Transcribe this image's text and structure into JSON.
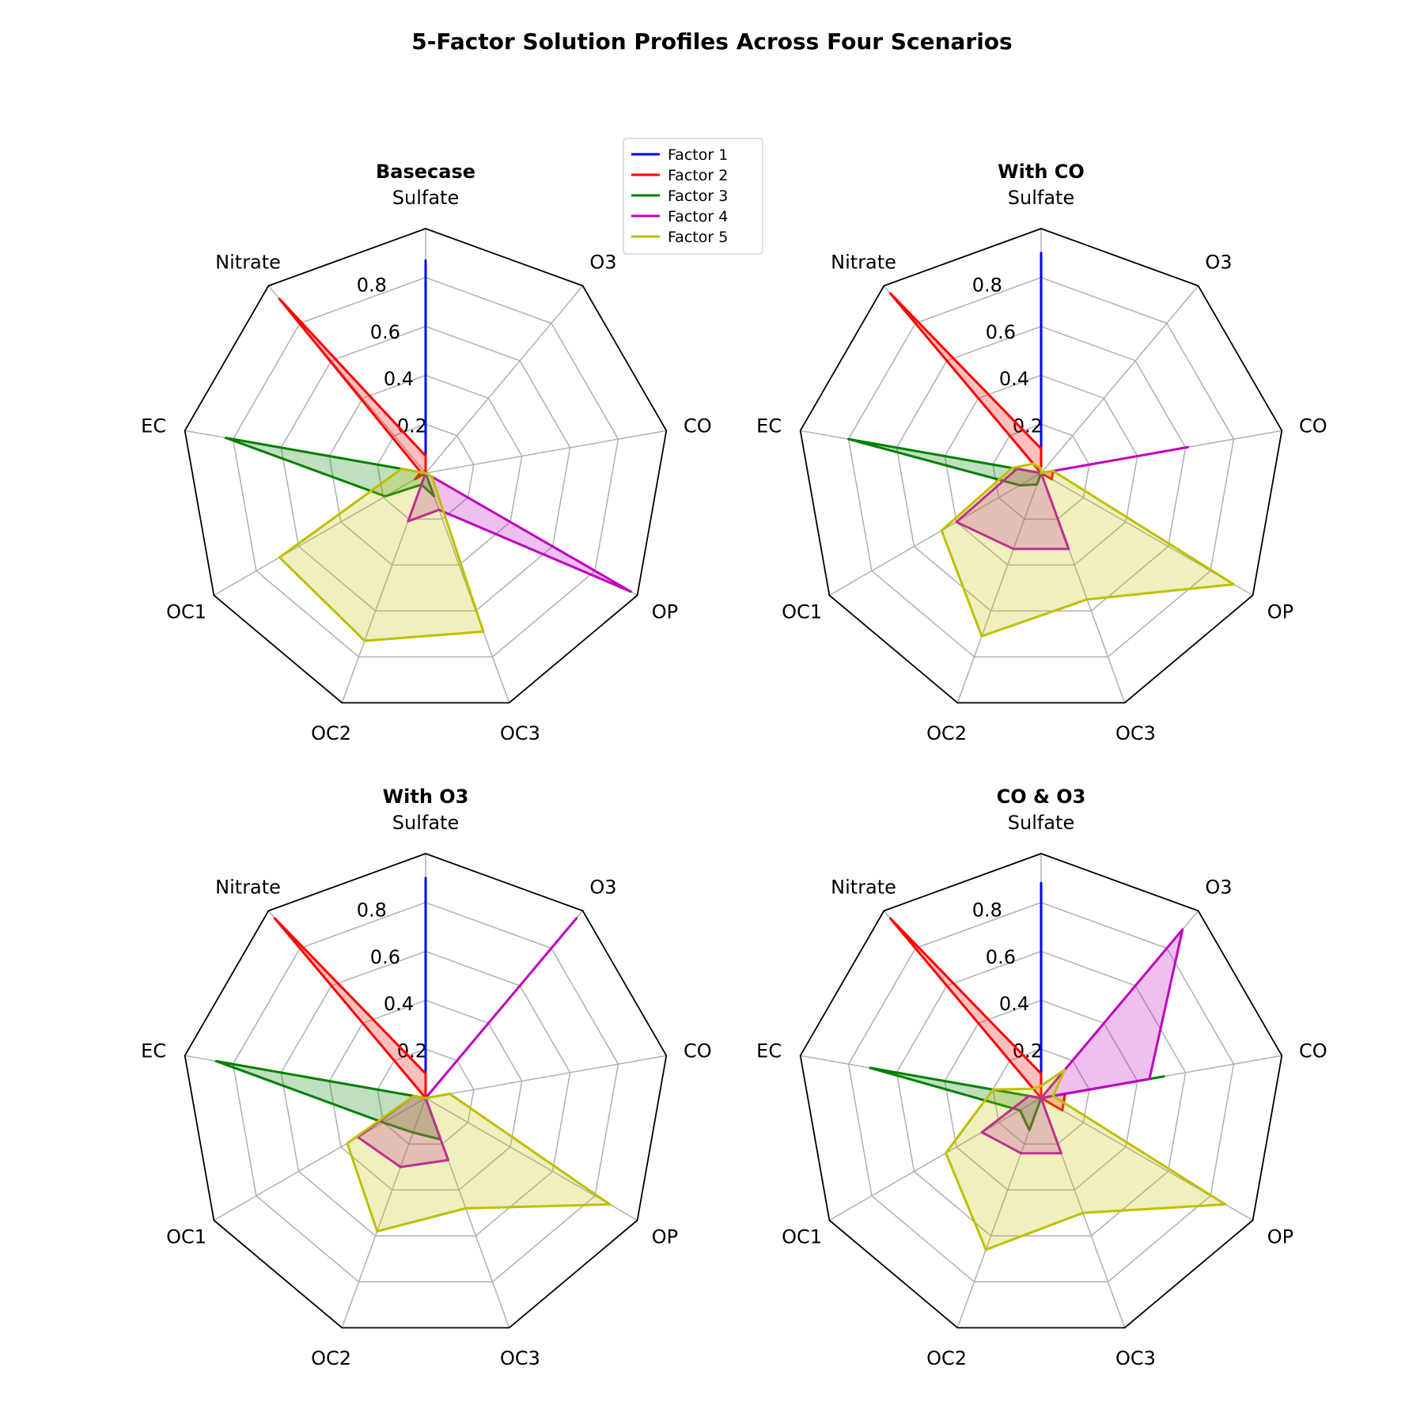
{
  "chart_data": {
    "type": "radar",
    "title": "5-Factor Solution Profiles Across Four Scenarios",
    "axes": [
      "Sulfate",
      "O3",
      "CO",
      "OP",
      "OC3",
      "OC2",
      "OC1",
      "EC",
      "Nitrate"
    ],
    "rlim": [
      0,
      1.0
    ],
    "rticks": [
      "0.2",
      "0.4",
      "0.6",
      "0.8"
    ],
    "grid": true,
    "legend": {
      "placement": "top-center",
      "entries": [
        "Factor 1",
        "Factor 2",
        "Factor 3",
        "Factor 4",
        "Factor 5"
      ]
    },
    "colors": {
      "Factor 1": "#0000ff",
      "Factor 2": "#ff0000",
      "Factor 3": "#008000",
      "Factor 4": "#bf00bf",
      "Factor 5": "#bfbf00"
    },
    "panels": [
      {
        "title": "Basecase",
        "series": [
          {
            "name": "Factor 1",
            "values": [
              0.87,
              0,
              0,
              0,
              0,
              0,
              0,
              0,
              0
            ]
          },
          {
            "name": "Factor 2",
            "values": [
              0.07,
              0,
              0,
              0,
              0,
              0,
              0.05,
              0.02,
              0.93
            ]
          },
          {
            "name": "Factor 3",
            "values": [
              0,
              0,
              0,
              0,
              0.1,
              0.05,
              0.19,
              0.83,
              0
            ]
          },
          {
            "name": "Factor 4",
            "values": [
              0,
              0,
              0,
              0.97,
              0.16,
              0.21,
              0,
              0.03,
              0
            ]
          },
          {
            "name": "Factor 5",
            "values": [
              0,
              0,
              0,
              0.03,
              0.69,
              0.73,
              0.69,
              0.1,
              0
            ]
          }
        ]
      },
      {
        "title": "With CO",
        "series": [
          {
            "name": "Factor 1",
            "values": [
              0.9,
              0,
              0,
              0,
              0,
              0,
              0,
              0,
              0
            ]
          },
          {
            "name": "Factor 2",
            "values": [
              0.1,
              0,
              0.05,
              0.05,
              0,
              0,
              0,
              0,
              0.96
            ]
          },
          {
            "name": "Factor 3",
            "values": [
              0,
              0,
              0,
              0,
              0,
              0.05,
              0.1,
              0.8,
              0
            ]
          },
          {
            "name": "Factor 4",
            "values": [
              0,
              0,
              0.61,
              0,
              0.33,
              0.33,
              0.4,
              0.1,
              0
            ]
          },
          {
            "name": "Factor 5",
            "values": [
              0.02,
              0,
              0.05,
              0.91,
              0.55,
              0.71,
              0.47,
              0.12,
              0.05
            ]
          }
        ]
      },
      {
        "title": "With O3",
        "series": [
          {
            "name": "Factor 1",
            "values": [
              0.9,
              0,
              0,
              0,
              0,
              0,
              0,
              0,
              0
            ]
          },
          {
            "name": "Factor 2",
            "values": [
              0.1,
              0,
              0,
              0,
              0,
              0,
              0,
              0,
              0.96
            ]
          },
          {
            "name": "Factor 3",
            "values": [
              0,
              0,
              0,
              0,
              0.18,
              0.15,
              0.2,
              0.87,
              0
            ]
          },
          {
            "name": "Factor 4",
            "values": [
              0,
              0.96,
              0,
              0,
              0.27,
              0.3,
              0.32,
              0.05,
              0
            ]
          },
          {
            "name": "Factor 5",
            "values": [
              0,
              0,
              0.1,
              0.87,
              0.48,
              0.58,
              0.37,
              0.05,
              0
            ]
          }
        ]
      },
      {
        "title": "CO & O3",
        "series": [
          {
            "name": "Factor 1",
            "values": [
              0.88,
              0,
              0,
              0,
              0,
              0,
              0,
              0,
              0
            ]
          },
          {
            "name": "Factor 2",
            "values": [
              0.1,
              0,
              0.1,
              0.1,
              0,
              0,
              0,
              0,
              0.96
            ]
          },
          {
            "name": "Factor 3",
            "values": [
              0,
              0,
              0.51,
              0,
              0,
              0.14,
              0.1,
              0.71,
              0
            ]
          },
          {
            "name": "Factor 4",
            "values": [
              0,
              0.9,
              0.45,
              0,
              0.24,
              0.24,
              0.28,
              0.05,
              0
            ]
          },
          {
            "name": "Factor 5",
            "values": [
              0.05,
              0.15,
              0.05,
              0.87,
              0.5,
              0.66,
              0.45,
              0.2,
              0.05
            ]
          }
        ]
      }
    ]
  }
}
